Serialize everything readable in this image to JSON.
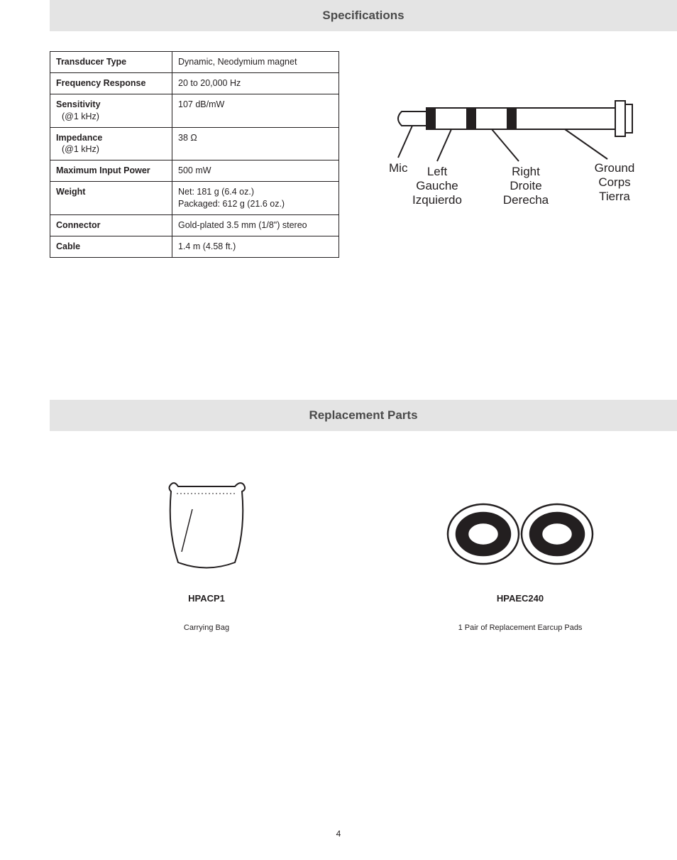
{
  "sections": {
    "specs_title": "Specifications",
    "parts_title": "Replacement Parts"
  },
  "specs_table": {
    "rows": [
      {
        "label": "Transducer Type",
        "sub": "",
        "value": "Dynamic, Neodymium magnet"
      },
      {
        "label": "Frequency Response",
        "sub": "",
        "value": "20 to 20,000 Hz"
      },
      {
        "label": "Sensitivity",
        "sub": "(@1 kHz)",
        "value": "107 dB/mW"
      },
      {
        "label": "Impedance",
        "sub": "(@1 kHz)",
        "value": "38 Ω"
      },
      {
        "label": "Maximum Input Power",
        "sub": "",
        "value": "500 mW"
      },
      {
        "label": "Weight",
        "sub": "",
        "value": "Net: 181 g (6.4 oz.)\nPackaged: 612 g (21.6 oz.)"
      },
      {
        "label": "Connector",
        "sub": "",
        "value": "Gold-plated 3.5 mm (1/8\") stereo"
      },
      {
        "label": "Cable",
        "sub": "",
        "value": "1.4 m (4.58 ft.)"
      }
    ]
  },
  "plug_diagram": {
    "labels": {
      "mic": "Mic",
      "left": [
        "Left",
        "Gauche",
        "Izquierdo"
      ],
      "right": [
        "Right",
        "Droite",
        "Derecha"
      ],
      "ground": [
        "Ground",
        "Corps",
        "Tierra"
      ]
    },
    "colors": {
      "stroke": "#231f20",
      "fill_black": "#231f20",
      "fill_white": "#ffffff"
    },
    "stroke_width": 2
  },
  "parts": [
    {
      "code": "HPACP1",
      "desc": "Carrying Bag",
      "icon": "bag"
    },
    {
      "code": "HPAEC240",
      "desc": "1 Pair of Replacement Earcup Pads",
      "icon": "earcups"
    }
  ],
  "page_number": "4",
  "style": {
    "header_bg": "#e4e4e4",
    "header_text_color": "#4a4a4a",
    "body_text_color": "#231f20",
    "header_fontsize": 17,
    "table_fontsize": 12.5,
    "partcode_fontsize": 13,
    "partdesc_fontsize": 11
  }
}
